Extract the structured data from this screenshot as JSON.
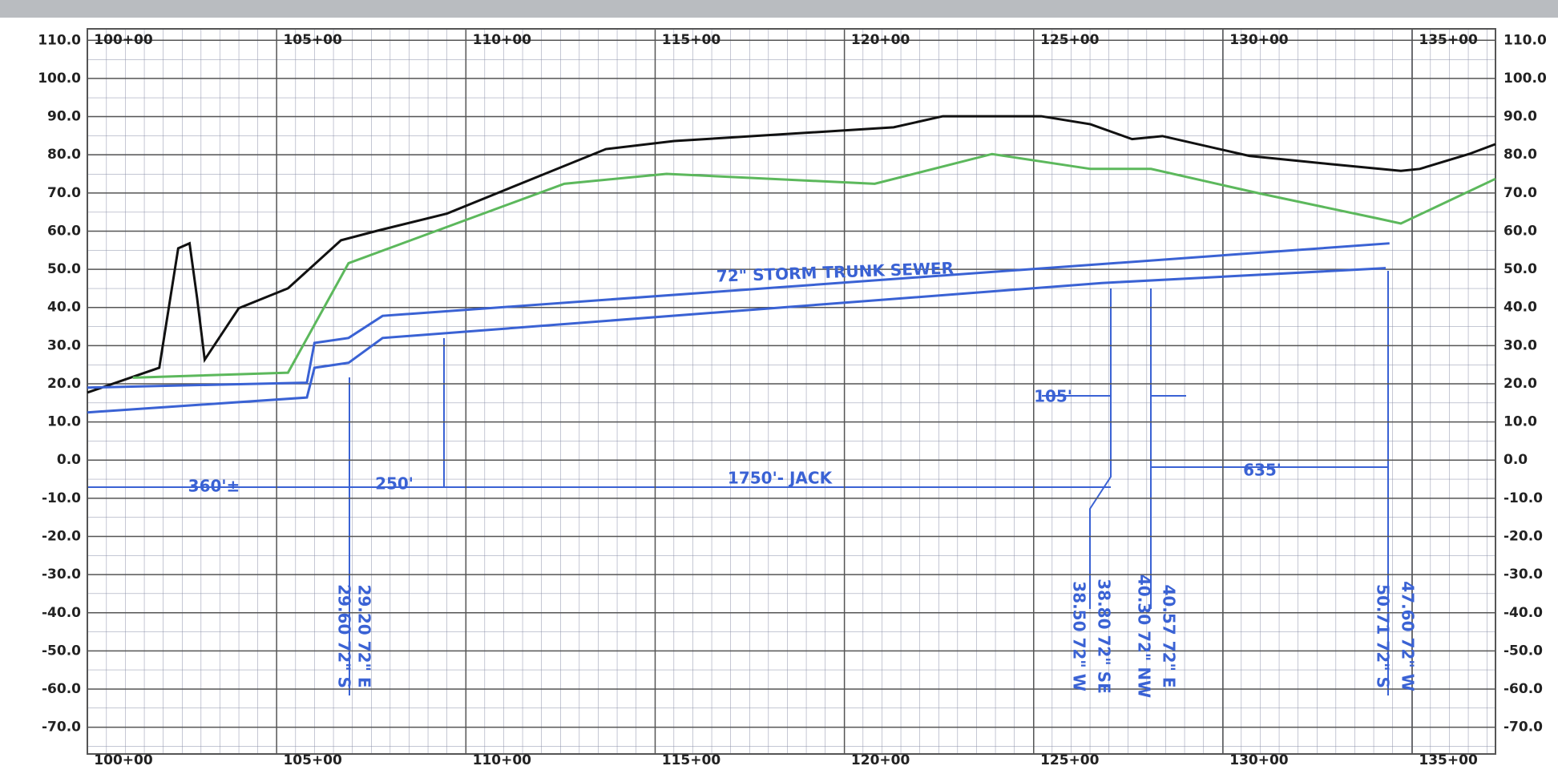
{
  "chart_data": {
    "type": "line",
    "xlim": [
      10000,
      13720
    ],
    "xticks": [
      {
        "value": 10000,
        "label": "100+00"
      },
      {
        "value": 10500,
        "label": "105+00"
      },
      {
        "value": 11000,
        "label": "110+00"
      },
      {
        "value": 11500,
        "label": "115+00"
      },
      {
        "value": 12000,
        "label": "120+00"
      },
      {
        "value": 12500,
        "label": "125+00"
      },
      {
        "value": 13000,
        "label": "130+00"
      },
      {
        "value": 13500,
        "label": "135+00"
      }
    ],
    "ylim": [
      -77,
      113
    ],
    "yticks": [
      {
        "value": 110,
        "label": "110.0"
      },
      {
        "value": 100,
        "label": "100.0"
      },
      {
        "value": 90,
        "label": "90.0"
      },
      {
        "value": 80,
        "label": "80.0"
      },
      {
        "value": 70,
        "label": "70.0"
      },
      {
        "value": 60,
        "label": "60.0"
      },
      {
        "value": 50,
        "label": "50.0"
      },
      {
        "value": 40,
        "label": "40.0"
      },
      {
        "value": 30,
        "label": "30.0"
      },
      {
        "value": 20,
        "label": "20.0"
      },
      {
        "value": 10,
        "label": "10.0"
      },
      {
        "value": 0,
        "label": "0.0"
      },
      {
        "value": -10,
        "label": "-10.0"
      },
      {
        "value": -20,
        "label": "-20.0"
      },
      {
        "value": -30,
        "label": "-30.0"
      },
      {
        "value": -40,
        "label": "-40.0"
      },
      {
        "value": -50,
        "label": "-50.0"
      },
      {
        "value": -60,
        "label": "-60.0"
      },
      {
        "value": -70,
        "label": "-70.0"
      }
    ],
    "grid": true,
    "series": [
      {
        "color": "#111111",
        "x": [
          10000,
          10190,
          10240,
          10270,
          10290,
          10310,
          10400,
          10480,
          10530,
          10670,
          10770,
          10950,
          11370,
          11550,
          12130,
          12260,
          12520,
          12650,
          12760,
          12840,
          13070,
          13280,
          13470,
          13520,
          13650,
          13720
        ],
        "y": [
          17.7,
          24.2,
          55.5,
          56.8,
          42.4,
          26.3,
          39.8,
          43,
          45,
          57.6,
          60.2,
          64.6,
          81.5,
          83.6,
          87.2,
          90.1,
          90.1,
          88,
          84.1,
          84.9,
          79.7,
          77.6,
          75.8,
          76.3,
          80.2,
          82.8
        ]
      },
      {
        "color": "#5cb85c",
        "x": [
          10120,
          10530,
          10690,
          11260,
          11530,
          12080,
          12390,
          12650,
          12810,
          13100,
          13410,
          13470,
          13720
        ],
        "y": [
          21.6,
          22.9,
          51.6,
          72.4,
          75,
          72.4,
          80.2,
          76.3,
          76.3,
          69.8,
          63.3,
          62,
          73.7
        ]
      },
      {
        "color": "#3a62d4",
        "x": [
          10000,
          10580,
          10600,
          10690,
          10780,
          12680,
          13430
        ],
        "y": [
          12.5,
          16.4,
          24.2,
          25.5,
          32,
          46.4,
          50.3
        ]
      },
      {
        "color": "#3a62d4",
        "x": [
          10000,
          10580,
          10600,
          10690,
          10780,
          13440
        ],
        "y": [
          19,
          20.3,
          30.7,
          32,
          37.8,
          56.8
        ]
      }
    ],
    "annotations": [
      "72\" STORM TRUNK SEWER",
      "1750'- JACK",
      "360'±",
      "250'",
      "105'",
      "635'",
      "29.60 72\" S",
      "29.20 72\" E",
      "38.50 72\" W",
      "38.80 72\" SE",
      "40.30 72\" NW",
      "40.57 72\" E",
      "50.71 72\" S",
      "47.60 72\" W"
    ]
  }
}
